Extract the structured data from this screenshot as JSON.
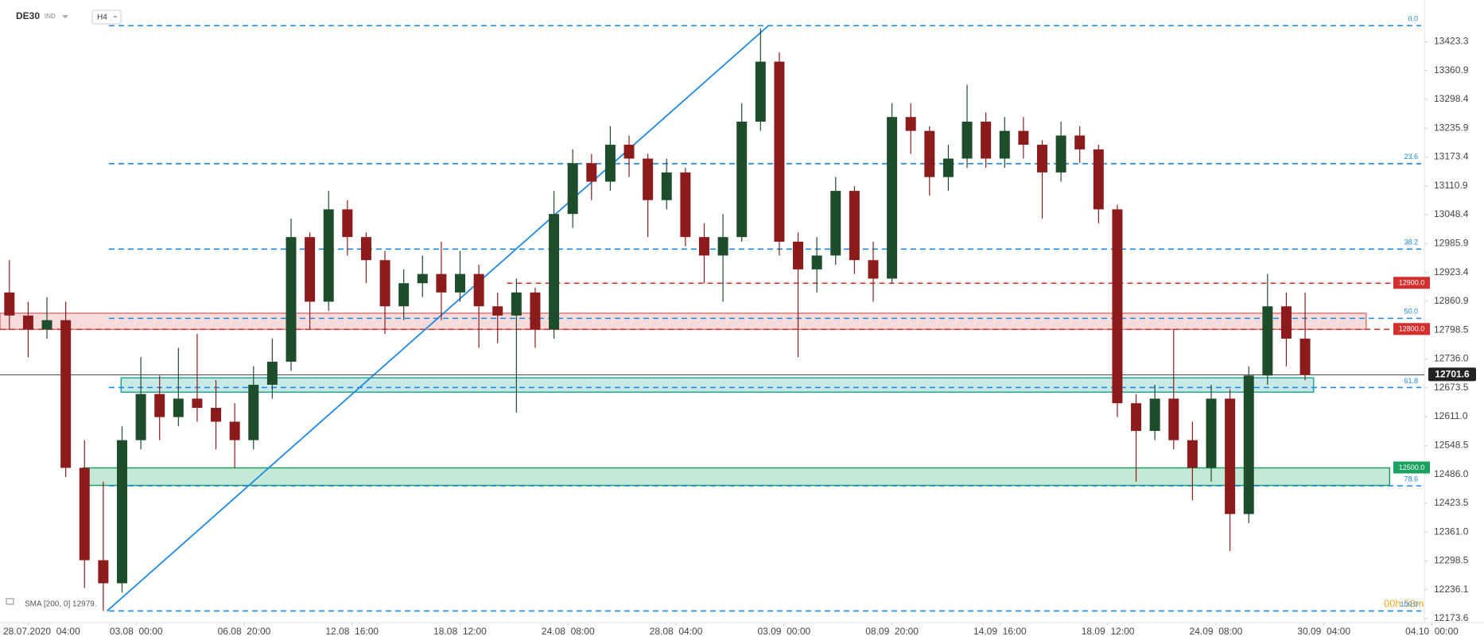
{
  "chart_data": {
    "type": "candlestick",
    "symbol": "DE30",
    "market": "IND",
    "interval": "H4",
    "indicator": "SMA [200, 0] 12979.",
    "timer": "00h 58m",
    "bull_color": "#1e4d2b",
    "bear_color": "#8c1c1c",
    "xlim": [
      0,
      303.4
    ],
    "ylim": [
      12165,
      13497
    ],
    "yticks": [
      13423.3,
      13360.9,
      13298.4,
      13235.9,
      13173.4,
      13110.9,
      13048.4,
      12985.9,
      12923.4,
      12860.9,
      12798.5,
      {
        "value": 12736.0,
        "label": "12736.0"
      },
      12673.5,
      {
        "value": 12611.0,
        "label": "12611.0"
      },
      12548.5,
      {
        "value": 12486.0,
        "label": "12486.0"
      },
      12423.5,
      {
        "value": 12361.0,
        "label": "12361.0"
      },
      12298.5,
      12236.1,
      12173.6
    ],
    "xticks": [
      {
        "value": 6,
        "label": "28.07.2020  04:00"
      },
      {
        "value": 29,
        "label": "03.08  00:00"
      },
      {
        "value": 52,
        "label": "06.08  20:00"
      },
      {
        "value": 75,
        "label": "12.08  16:00"
      },
      {
        "value": 98,
        "label": "18.08  12:00"
      },
      {
        "value": 121,
        "label": "24.08  08:00"
      },
      {
        "value": 144,
        "label": "28.08  04:00"
      },
      {
        "value": 167,
        "label": "03.09  00:00"
      },
      {
        "value": 190,
        "label": "08.09  20:00"
      },
      {
        "value": 213,
        "label": "14.09  16:00"
      },
      {
        "value": 236,
        "label": "18.09  12:00"
      },
      {
        "value": 259,
        "label": "24.09  08:00"
      },
      {
        "value": 282,
        "label": "30.09  04:00"
      },
      {
        "value": 305,
        "label": "04.10  00:00"
      }
    ],
    "x": [
      2,
      6,
      10,
      14,
      18,
      22,
      26,
      30,
      34,
      38,
      42,
      46,
      50,
      54,
      58,
      62,
      66,
      70,
      74,
      78,
      82,
      86,
      90,
      94,
      98,
      102,
      106,
      110,
      114,
      118,
      122,
      126,
      130,
      134,
      138,
      142,
      146,
      150,
      154,
      158,
      162,
      166,
      170,
      174,
      178,
      182,
      186,
      190,
      194,
      198,
      202,
      206,
      210,
      214,
      218,
      222,
      226,
      230,
      234,
      238,
      242,
      246,
      250,
      254,
      258,
      262,
      266,
      270,
      274,
      278
    ],
    "open": [
      12880,
      12830,
      12800,
      12820,
      12500,
      12300,
      12250,
      12560,
      12660,
      12610,
      12650,
      12630,
      12600,
      12560,
      12680,
      12730,
      13000,
      12860,
      13060,
      13000,
      12950,
      12850,
      12900,
      12920,
      12880,
      12920,
      12850,
      12830,
      12880,
      12800,
      13050,
      13160,
      13120,
      13200,
      13170,
      13080,
      13140,
      13000,
      12960,
      13000,
      13250,
      13380,
      12990,
      12930,
      12960,
      13100,
      12950,
      12910,
      13260,
      13230,
      13130,
      13170,
      13250,
      13170,
      13230,
      13200,
      13140,
      13220,
      13190,
      13060,
      12640,
      12580,
      12650,
      12560,
      12500,
      12650,
      12400,
      12700,
      12850,
      12780
    ],
    "high": [
      12950,
      12860,
      12870,
      12860,
      12560,
      12470,
      12590,
      12740,
      12700,
      12760,
      12790,
      12690,
      12640,
      12720,
      12780,
      13040,
      13010,
      13100,
      13080,
      13010,
      12970,
      12930,
      12960,
      12990,
      12970,
      12940,
      12880,
      12910,
      12890,
      13100,
      13190,
      13180,
      13240,
      13220,
      13180,
      13170,
      13150,
      13030,
      13050,
      13290,
      13452,
      13400,
      13010,
      13000,
      13130,
      13110,
      12990,
      13290,
      13290,
      13240,
      13200,
      13330,
      13270,
      13260,
      13260,
      13210,
      13250,
      13240,
      13200,
      13070,
      12660,
      12680,
      12800,
      12600,
      12680,
      12670,
      12720,
      12920,
      12880,
      12880
    ],
    "low": [
      12800,
      12740,
      12780,
      12480,
      12240,
      12190,
      12230,
      12540,
      12560,
      12590,
      12600,
      12540,
      12500,
      12540,
      12650,
      12710,
      12800,
      12840,
      12960,
      12900,
      12790,
      12820,
      12870,
      12820,
      12860,
      12760,
      12770,
      12620,
      12760,
      12780,
      13020,
      13080,
      13100,
      13130,
      13000,
      13060,
      12980,
      12900,
      12860,
      12990,
      13230,
      12960,
      12740,
      12880,
      12940,
      12920,
      12860,
      12900,
      13180,
      13090,
      13100,
      13150,
      13150,
      13150,
      13170,
      13040,
      13120,
      13160,
      13030,
      12610,
      12470,
      12560,
      12540,
      12430,
      12470,
      12320,
      12380,
      12680,
      12720,
      12690
    ],
    "close": [
      12830,
      12800,
      12820,
      12500,
      12300,
      12250,
      12560,
      12660,
      12610,
      12650,
      12630,
      12600,
      12560,
      12680,
      12730,
      13000,
      12860,
      13060,
      13000,
      12950,
      12850,
      12900,
      12920,
      12880,
      12920,
      12850,
      12830,
      12880,
      12800,
      13050,
      13160,
      13120,
      13200,
      13170,
      13080,
      13140,
      13000,
      12960,
      13000,
      13250,
      13380,
      12990,
      12930,
      12960,
      13100,
      12950,
      12910,
      13260,
      13230,
      13130,
      13170,
      13250,
      13170,
      13230,
      13200,
      13140,
      13220,
      13190,
      13060,
      12640,
      12580,
      12650,
      12560,
      12500,
      12650,
      12400,
      12700,
      12850,
      12780,
      12701.6
    ],
    "last": 12701.6,
    "trendline": {
      "color": "#1e88e5",
      "from": [
        22.8,
        12190
      ],
      "to": [
        163.7,
        13458
      ]
    },
    "fib": {
      "color": "#1e88e5",
      "from": 23.2,
      "levels": [
        {
          "label": "0.0",
          "price": 13458
        },
        {
          "label": "23.6",
          "price": 13159
        },
        {
          "label": "38.2",
          "price": 12974
        },
        {
          "label": "50.0",
          "price": 12824
        },
        {
          "label": "61.8",
          "price": 12674
        },
        {
          "label": "78.6",
          "price": 12461
        },
        {
          "label": "100.0",
          "price": 12190
        }
      ]
    },
    "levels": [
      {
        "value": 12900,
        "label": "12900.0",
        "color": "#d32f2f",
        "from": 108,
        "dashed": true
      },
      {
        "value": 12800,
        "label": "12800.0",
        "color": "#d32f2f",
        "from": 0,
        "dashed": true
      },
      {
        "value": 12500,
        "label": "12500.0",
        "color": "#1aa260",
        "from": 296,
        "dashed": false
      }
    ],
    "zones": [
      {
        "low": 12800,
        "high": 12835,
        "from": 0,
        "to": 291,
        "color": "#e57373"
      },
      {
        "low": 12664,
        "high": 12695,
        "from": 25.8,
        "to": 279.8,
        "color": "#26a69a"
      },
      {
        "low": 12462,
        "high": 12500,
        "from": 17.7,
        "to": 296,
        "color": "#1aa260"
      }
    ]
  }
}
